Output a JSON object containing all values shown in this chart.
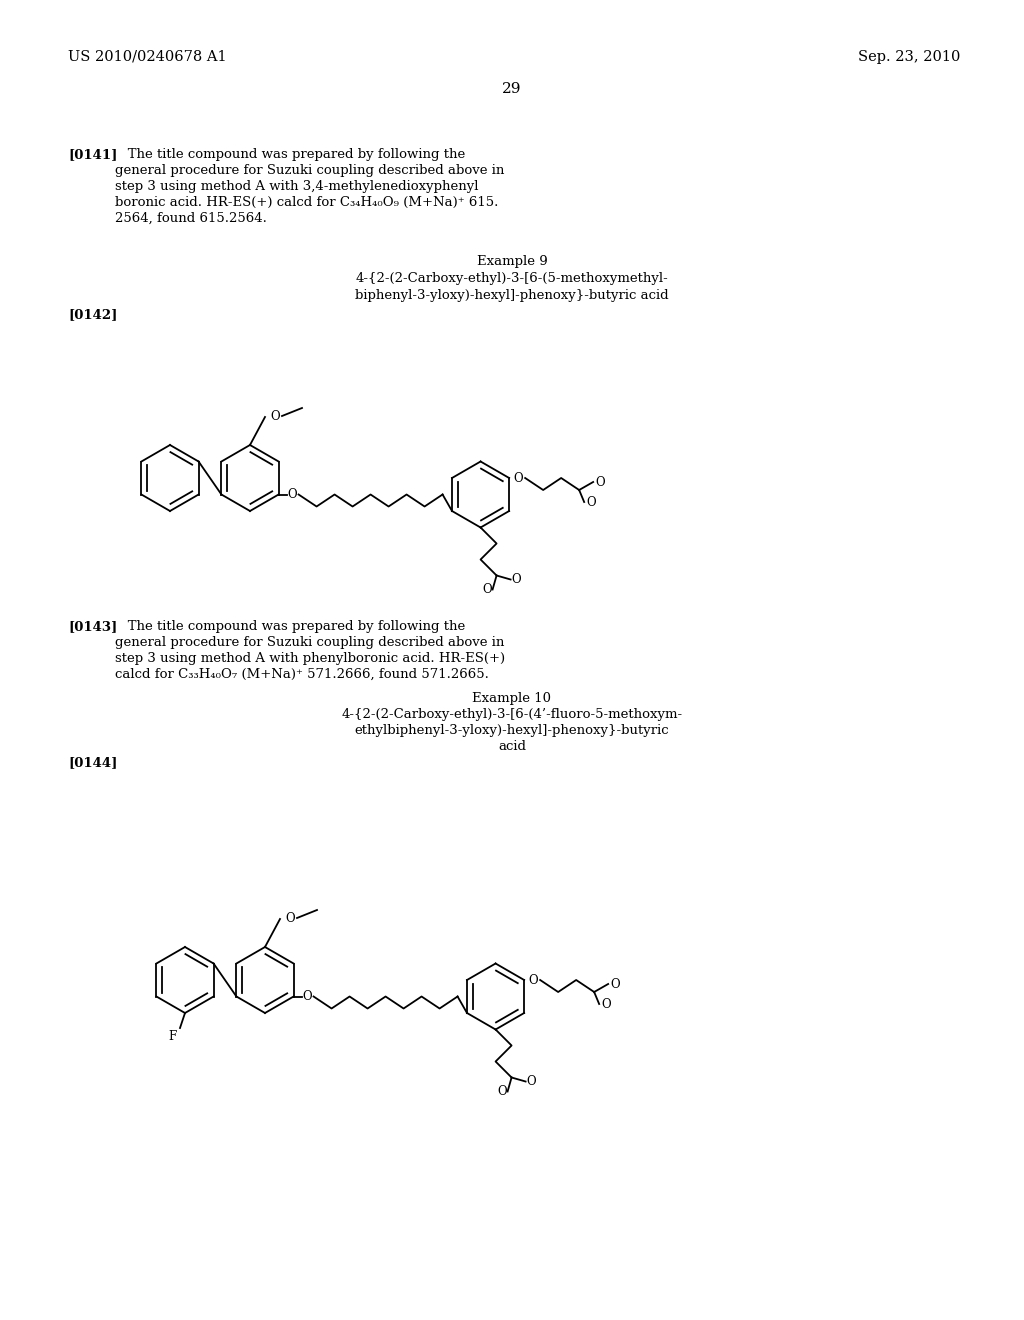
{
  "background_color": "#ffffff",
  "header_left": "US 2010/0240678 A1",
  "header_right": "Sep. 23, 2010",
  "page_number": "29",
  "para141_label": "[0141]",
  "para141_text": "   The title compound was prepared by following the\ngeneral procedure for Suzuki coupling described above in\nstep 3 using method A with 3,4-methylenedioxyphenyl\nboronic acid. HR-ES(+) calcd for C₃₄H₄₀O₉ (M+Na)⁺ 615.\n2564, found 615.2564.",
  "example9_title": "Example 9",
  "example9_line1": "4-{2-(2-Carboxy-ethyl)-3-[6-(5-methoxymethyl-",
  "example9_line2": "biphenyl-3-yloxy)-hexyl]-phenoxy}-butyric acid",
  "para142_label": "[0142]",
  "para143_label": "[0143]",
  "para143_text": "   The title compound was prepared by following the\ngeneral procedure for Suzuki coupling described above in\nstep 3 using method A with phenylboronic acid. HR-ES(+)\ncalcd for C₃₃H₄₀O₇ (M+Na)⁺ 571.2666, found 571.2665.",
  "example10_title": "Example 10",
  "example10_line1": "4-{2-(2-Carboxy-ethyl)-3-[6-(4’-fluoro-5-methoxym-",
  "example10_line2": "ethylbiphenyl-3-yloxy)-hexyl]-phenoxy}-butyric",
  "example10_line3": "acid",
  "para144_label": "[0144]"
}
